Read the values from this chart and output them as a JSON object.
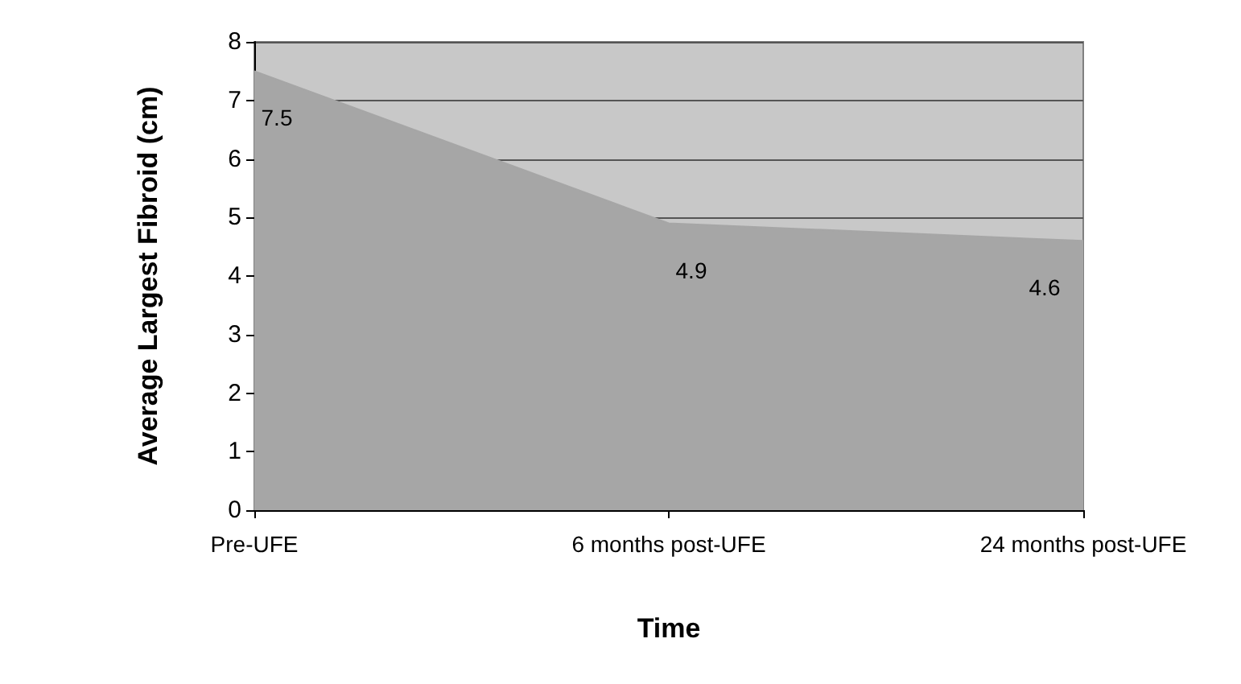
{
  "chart_data": {
    "type": "area",
    "xlabel": "Time",
    "ylabel": "Average Largest Fibroid (cm)",
    "categories": [
      "Pre-UFE",
      "6 months post-UFE",
      "24 months post-UFE"
    ],
    "series": [
      {
        "color": "#a6a6a6",
        "values": [
          7.5,
          4.9,
          4.6
        ]
      }
    ],
    "ylim": [
      0,
      8
    ],
    "yticks": [
      0,
      1,
      2,
      3,
      4,
      5,
      6,
      7,
      8
    ],
    "grid": "y",
    "data_labels": true
  }
}
